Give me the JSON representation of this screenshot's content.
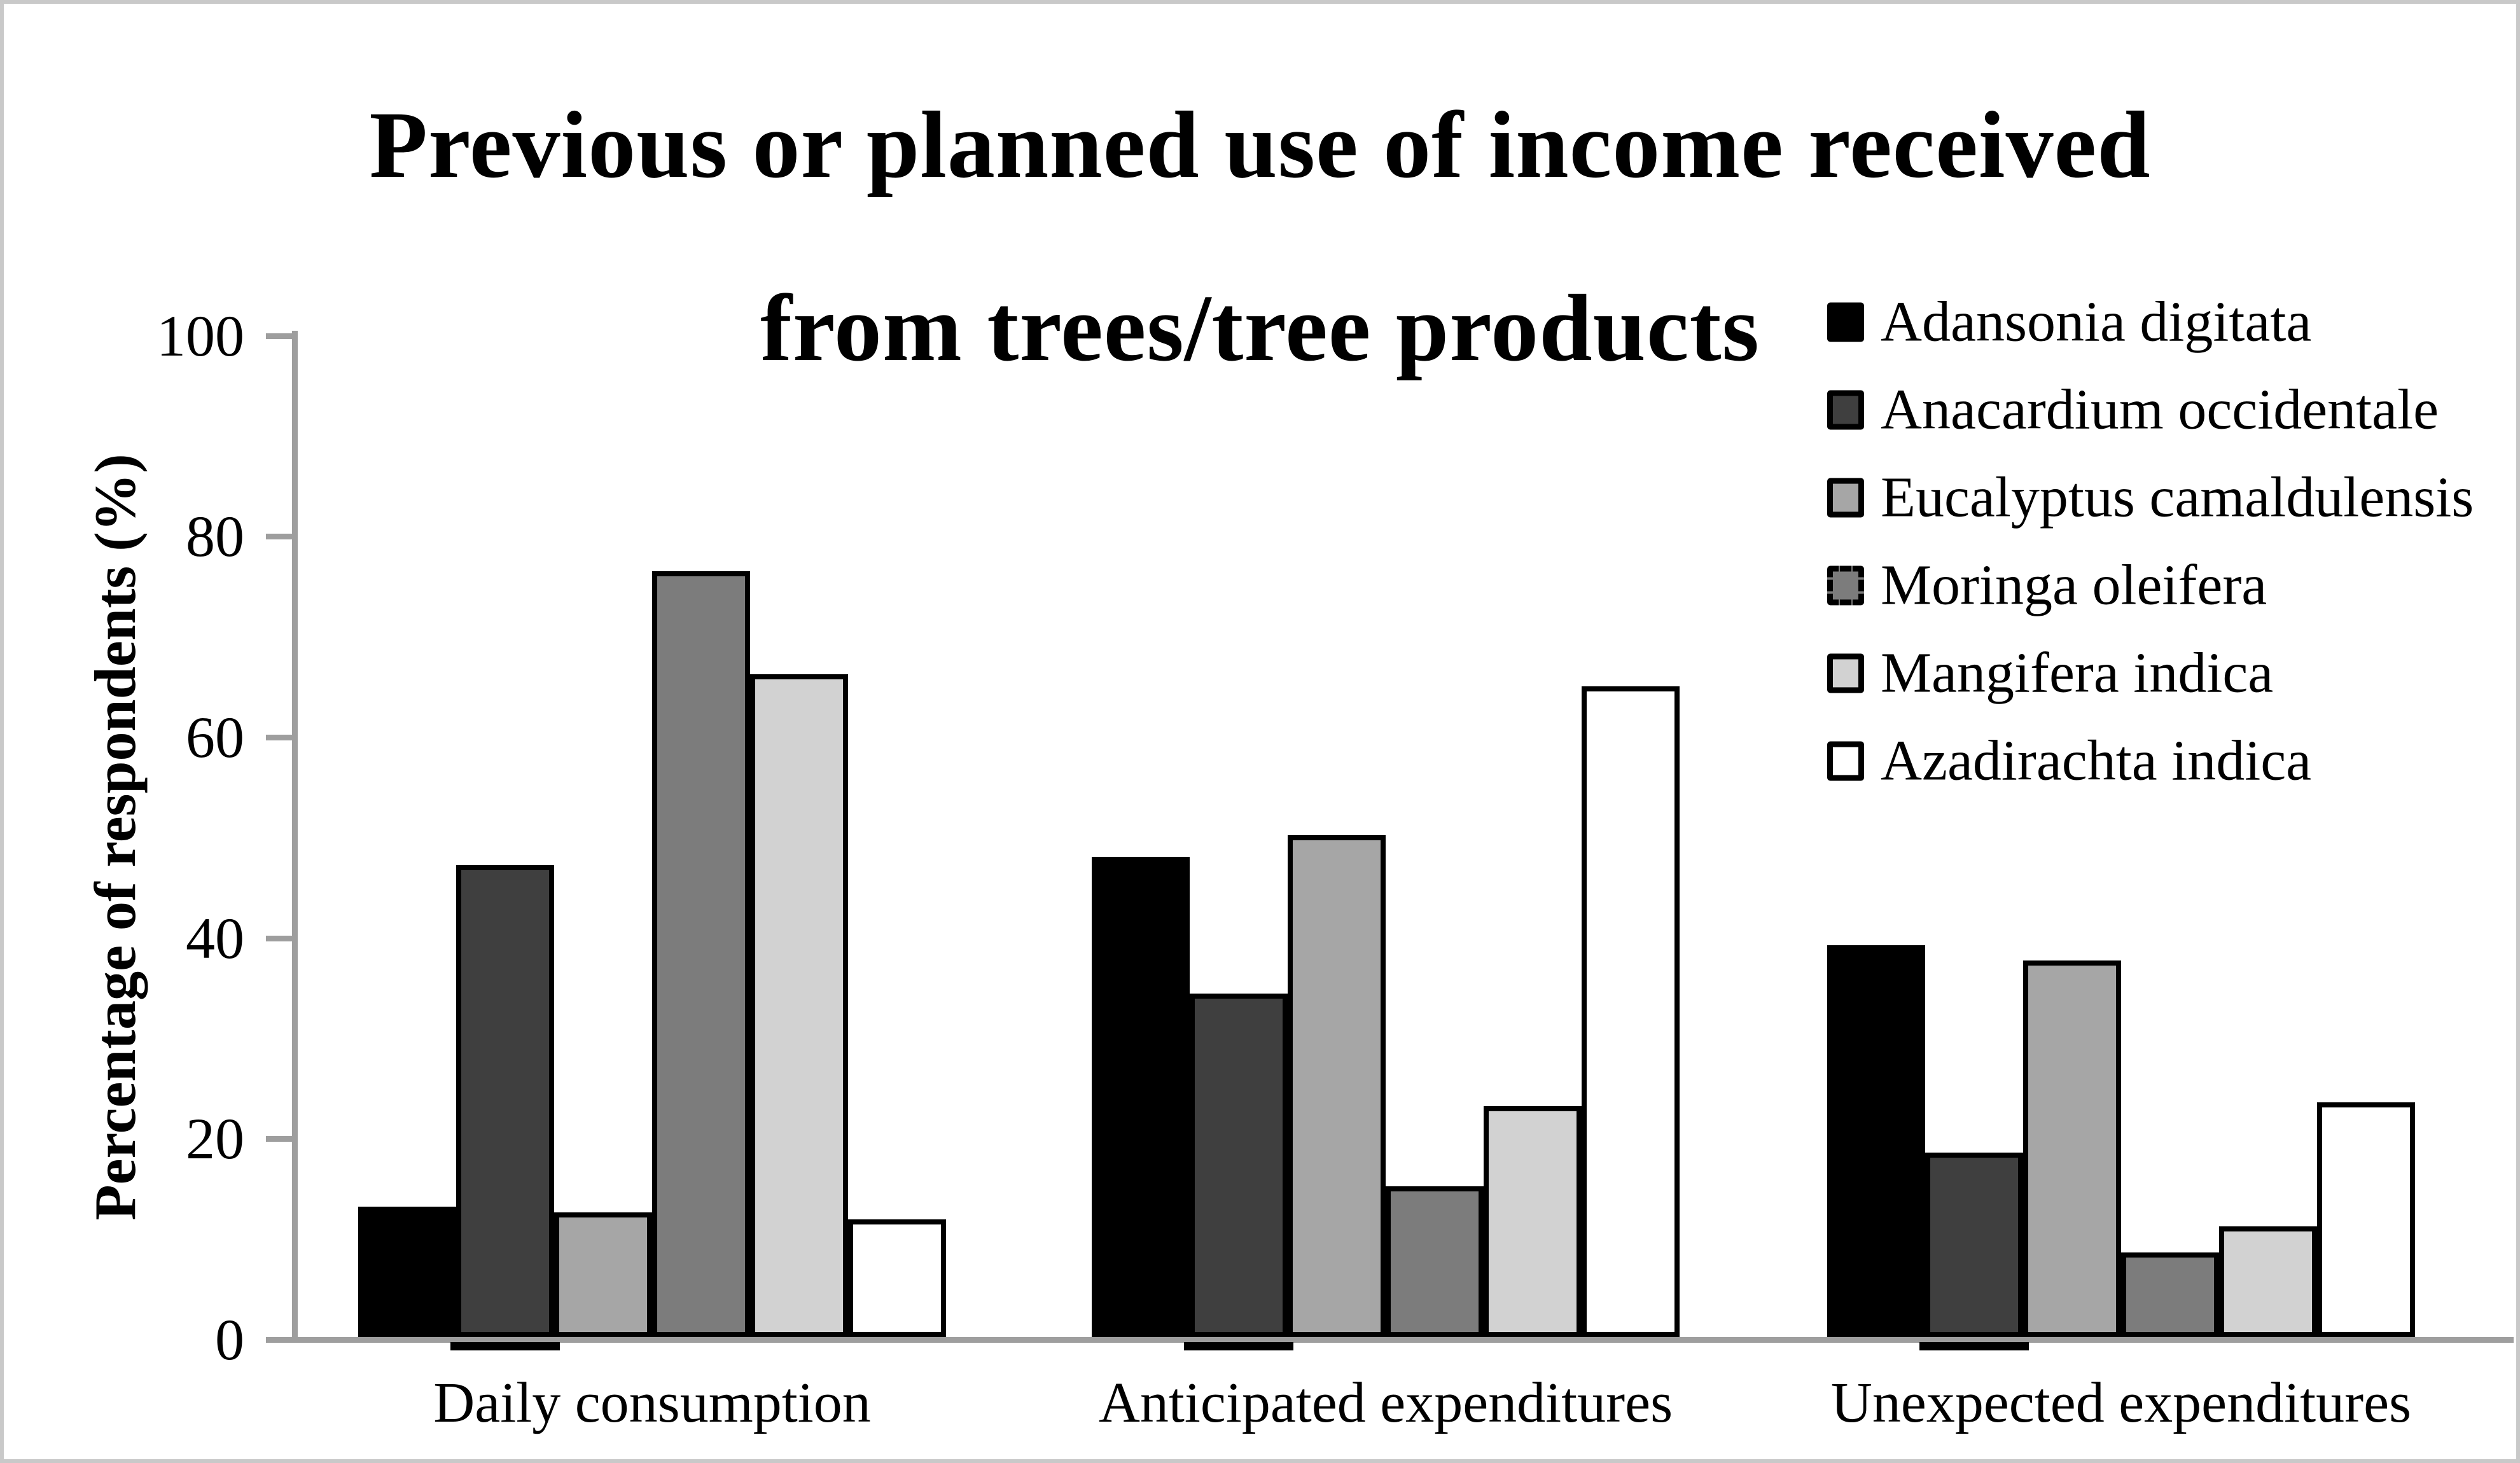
{
  "page": {
    "background": "#ffffff",
    "frame_border_color": "#c9c9c9"
  },
  "chart_data": {
    "type": "bar",
    "title_lines": [
      "Previous or planned use of income received",
      "from trees/tree products"
    ],
    "ylabel": "Percentage of respondents (%)",
    "xlabel": "",
    "ylim": [
      0,
      100
    ],
    "yticks": [
      0,
      20,
      40,
      60,
      80,
      100
    ],
    "grid": false,
    "legend_position": "upper-right",
    "axis_color": "#9e9e9e",
    "bar_border_color": "#000000",
    "categories": [
      "Daily consumption",
      "Anticipated expenditures",
      "Unexpected expenditures"
    ],
    "series": [
      {
        "name": "Adansonia digitata",
        "fill": "#000000",
        "legend_swatch_style": "solid-filled",
        "values": [
          13,
          47.8,
          39
        ]
      },
      {
        "name": "Anacardium occidentale",
        "fill": "#3f3f3f",
        "legend_swatch_style": "solid",
        "values": [
          47,
          34.2,
          18.4
        ]
      },
      {
        "name": "Eucalyptus camaldulensis",
        "fill": "#a6a6a6",
        "legend_swatch_style": "solid",
        "values": [
          12.4,
          50,
          37.5
        ]
      },
      {
        "name": "Moringa oleifera",
        "fill": "#7c7c7c",
        "legend_swatch_style": "dashed",
        "values": [
          76.3,
          15,
          8.4
        ]
      },
      {
        "name": "Mangifera indica",
        "fill": "#d2d2d2",
        "legend_swatch_style": "solid",
        "values": [
          66,
          23,
          11
        ]
      },
      {
        "name": "Azadirachta indica",
        "fill": "#ffffff",
        "legend_swatch_style": "solid",
        "values": [
          11.7,
          64.8,
          23.4
        ]
      }
    ]
  }
}
